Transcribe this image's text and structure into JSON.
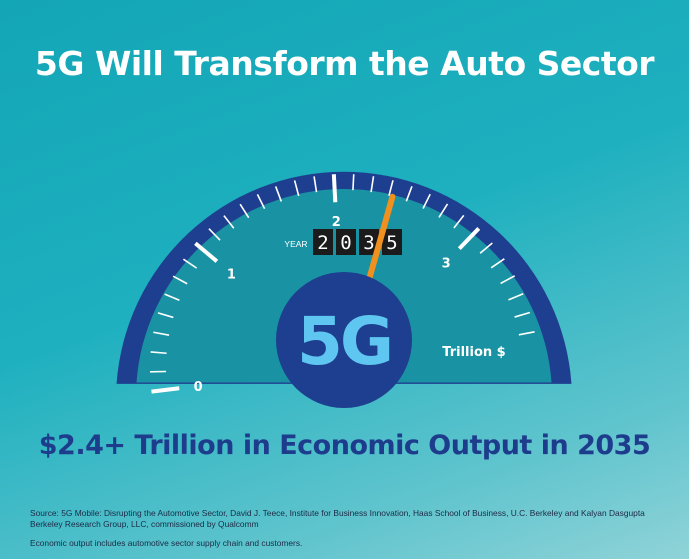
{
  "title": "5G Will Transform the Auto Sector",
  "gauge": {
    "value": 2.4,
    "min": 0,
    "max": 4,
    "major_labels": [
      "0",
      "1",
      "2",
      "3"
    ],
    "unit_label": "Trillion $",
    "center_label": "5G",
    "year_label": "YEAR",
    "year_digits": [
      "2",
      "0",
      "3",
      "5"
    ],
    "colors": {
      "outer_arc": "#1e3f8f",
      "dial": "#1993a3",
      "needle": "#f0901e",
      "hub": "#1e3f8f",
      "center_text": "#5ec6f0",
      "odometer": "#1b1b1b"
    }
  },
  "headline": "$2.4+ Trillion in Economic Output in 2035",
  "source": "Source: 5G Mobile: Disrupting the Automotive Sector, David J. Teece, Institute for Business Innovation, Haas School of Business, U.C. Berkeley and Kalyan Dasgupta Berkeley Research Group, LLC, commissioned by Qualcomm",
  "note": "Economic output includes automotive sector supply chain and customers."
}
